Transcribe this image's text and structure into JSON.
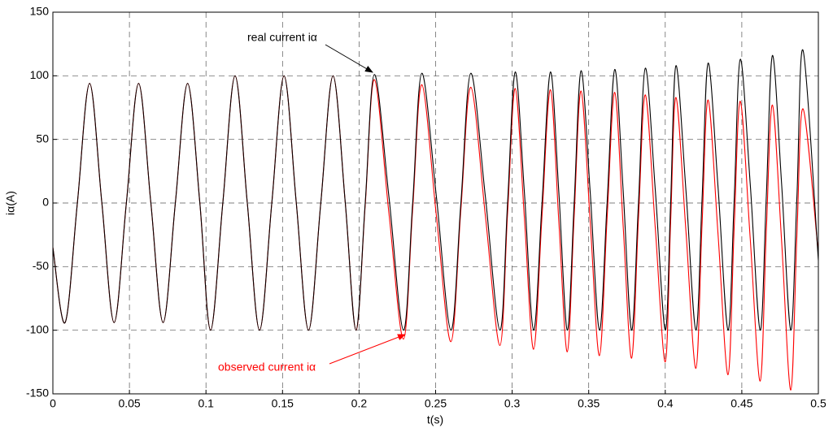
{
  "chart_data": {
    "type": "line",
    "xlabel": "t(s)",
    "ylabel": "iα(A)",
    "xlim": [
      0,
      0.5
    ],
    "ylim": [
      -150,
      150
    ],
    "xticks": [
      0,
      0.05,
      0.1,
      0.15,
      0.2,
      0.25,
      0.3,
      0.35,
      0.4,
      0.45,
      0.5
    ],
    "yticks": [
      -150,
      -100,
      -50,
      0,
      50,
      100,
      150
    ],
    "grid": true,
    "x": [
      0,
      0.008,
      0.016,
      0.024,
      0.032,
      0.04,
      0.048,
      0.056,
      0.064,
      0.072,
      0.08,
      0.088,
      0.096,
      0.103,
      0.111,
      0.119,
      0.127,
      0.135,
      0.143,
      0.151,
      0.159,
      0.167,
      0.175,
      0.183,
      0.191,
      0.198,
      0.204,
      0.21,
      0.2195,
      0.229,
      0.235,
      0.241,
      0.2505,
      0.26,
      0.2665,
      0.273,
      0.2825,
      0.292,
      0.297,
      0.302,
      0.308,
      0.314,
      0.3195,
      0.325,
      0.3305,
      0.336,
      0.3405,
      0.345,
      0.351,
      0.357,
      0.362,
      0.367,
      0.3725,
      0.378,
      0.3825,
      0.387,
      0.3935,
      0.4,
      0.4035,
      0.407,
      0.4135,
      0.42,
      0.424,
      0.428,
      0.4345,
      0.441,
      0.445,
      0.449,
      0.4555,
      0.462,
      0.466,
      0.47,
      0.476,
      0.482,
      0.486,
      0.49,
      0.5
    ],
    "series": [
      {
        "name": "observed current iα",
        "color": "#ff0000",
        "values": [
          -35,
          -94,
          0,
          94,
          0,
          -94,
          0,
          94,
          0,
          -94,
          0,
          94,
          0,
          -100,
          0,
          100,
          0,
          -100,
          0,
          100,
          0,
          -100,
          0,
          100,
          0,
          -100,
          -2,
          97,
          -8,
          -107,
          -5,
          93,
          -10,
          -109,
          -5,
          91,
          -10,
          -112,
          -8,
          90,
          -12,
          -115,
          -10,
          89,
          -15,
          -117,
          -10,
          88,
          -15,
          -120,
          -12,
          87,
          -18,
          -122,
          -12,
          85,
          -20,
          -125,
          -15,
          83,
          -22,
          -130,
          -18,
          81,
          -25,
          -135,
          -20,
          80,
          -28,
          -140,
          -22,
          77,
          -30,
          -147,
          -25,
          74,
          -40
        ]
      },
      {
        "name": "real current iα",
        "color": "#000000",
        "values": [
          -35,
          -94,
          0,
          94,
          0,
          -94,
          0,
          94,
          0,
          -94,
          0,
          94,
          0,
          -100,
          0,
          100,
          0,
          -100,
          0,
          100,
          0,
          -100,
          0,
          100,
          0,
          -100,
          0,
          101,
          5,
          -100,
          0,
          102,
          5,
          -100,
          0,
          102,
          5,
          -100,
          0,
          103,
          8,
          -100,
          0,
          103,
          8,
          -100,
          0,
          104,
          8,
          -100,
          0,
          105,
          10,
          -100,
          0,
          106,
          10,
          -100,
          0,
          108,
          10,
          -100,
          2,
          110,
          12,
          -100,
          2,
          113,
          15,
          -100,
          5,
          116,
          15,
          -100,
          5,
          120,
          -45
        ]
      }
    ]
  }
}
